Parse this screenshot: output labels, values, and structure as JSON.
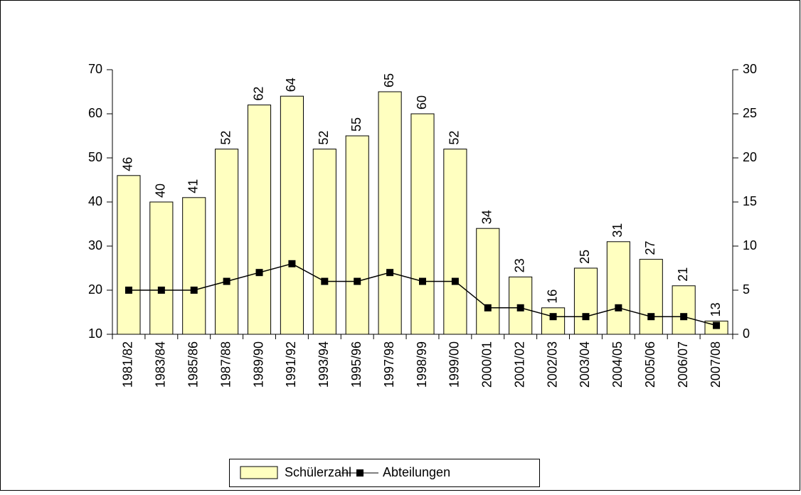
{
  "chart_data": {
    "type": "bar",
    "categories": [
      "1981/82",
      "1983/84",
      "1985/86",
      "1987/88",
      "1989/90",
      "1991/92",
      "1993/94",
      "1995/96",
      "1997/98",
      "1998/99",
      "1999/00",
      "2000/01",
      "2001/02",
      "2002/03",
      "2003/04",
      "2004/05",
      "2005/06",
      "2006/07",
      "2007/08"
    ],
    "series": [
      {
        "name": "Schülerzahl",
        "type": "bar",
        "color": "#ffffc0",
        "values": [
          46,
          40,
          41,
          52,
          62,
          64,
          52,
          55,
          65,
          60,
          52,
          34,
          23,
          16,
          25,
          31,
          27,
          21,
          13
        ]
      },
      {
        "name": "Abteilungen",
        "type": "line",
        "axis": "y2",
        "color": "#000000",
        "values": [
          5,
          5,
          5,
          6,
          7,
          8,
          6,
          6,
          7,
          6,
          6,
          3,
          3,
          2,
          2,
          3,
          2,
          2,
          1
        ]
      }
    ],
    "ylim": [
      10,
      70
    ],
    "yticks": [
      10,
      20,
      30,
      40,
      50,
      60,
      70
    ],
    "y2lim": [
      0,
      30
    ],
    "y2ticks": [
      0,
      5,
      10,
      15,
      20,
      25,
      30
    ],
    "grid": false,
    "legend": "bottom"
  }
}
